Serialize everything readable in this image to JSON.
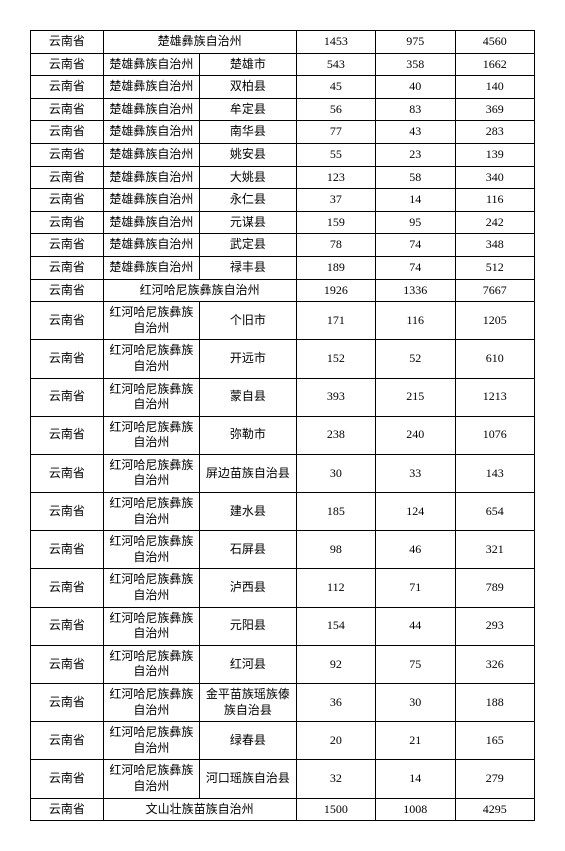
{
  "rows": [
    {
      "type": "summary",
      "prov": "云南省",
      "merged": "楚雄彝族自治州",
      "n1": "1453",
      "n2": "975",
      "n3": "4560"
    },
    {
      "type": "detail",
      "prov": "云南省",
      "pref": "楚雄彝族自治州",
      "county": "楚雄市",
      "n1": "543",
      "n2": "358",
      "n3": "1662"
    },
    {
      "type": "detail",
      "prov": "云南省",
      "pref": "楚雄彝族自治州",
      "county": "双柏县",
      "n1": "45",
      "n2": "40",
      "n3": "140"
    },
    {
      "type": "detail",
      "prov": "云南省",
      "pref": "楚雄彝族自治州",
      "county": "牟定县",
      "n1": "56",
      "n2": "83",
      "n3": "369"
    },
    {
      "type": "detail",
      "prov": "云南省",
      "pref": "楚雄彝族自治州",
      "county": "南华县",
      "n1": "77",
      "n2": "43",
      "n3": "283"
    },
    {
      "type": "detail",
      "prov": "云南省",
      "pref": "楚雄彝族自治州",
      "county": "姚安县",
      "n1": "55",
      "n2": "23",
      "n3": "139"
    },
    {
      "type": "detail",
      "prov": "云南省",
      "pref": "楚雄彝族自治州",
      "county": "大姚县",
      "n1": "123",
      "n2": "58",
      "n3": "340"
    },
    {
      "type": "detail",
      "prov": "云南省",
      "pref": "楚雄彝族自治州",
      "county": "永仁县",
      "n1": "37",
      "n2": "14",
      "n3": "116"
    },
    {
      "type": "detail",
      "prov": "云南省",
      "pref": "楚雄彝族自治州",
      "county": "元谋县",
      "n1": "159",
      "n2": "95",
      "n3": "242"
    },
    {
      "type": "detail",
      "prov": "云南省",
      "pref": "楚雄彝族自治州",
      "county": "武定县",
      "n1": "78",
      "n2": "74",
      "n3": "348"
    },
    {
      "type": "detail",
      "prov": "云南省",
      "pref": "楚雄彝族自治州",
      "county": "禄丰县",
      "n1": "189",
      "n2": "74",
      "n3": "512"
    },
    {
      "type": "summary",
      "prov": "云南省",
      "merged": "红河哈尼族彝族自治州",
      "n1": "1926",
      "n2": "1336",
      "n3": "7667"
    },
    {
      "type": "detail",
      "prov": "云南省",
      "pref": "红河哈尼族彝族自治州",
      "county": "个旧市",
      "n1": "171",
      "n2": "116",
      "n3": "1205"
    },
    {
      "type": "detail",
      "prov": "云南省",
      "pref": "红河哈尼族彝族自治州",
      "county": "开远市",
      "n1": "152",
      "n2": "52",
      "n3": "610"
    },
    {
      "type": "detail",
      "prov": "云南省",
      "pref": "红河哈尼族彝族自治州",
      "county": "蒙自县",
      "n1": "393",
      "n2": "215",
      "n3": "1213"
    },
    {
      "type": "detail",
      "prov": "云南省",
      "pref": "红河哈尼族彝族自治州",
      "county": "弥勒市",
      "n1": "238",
      "n2": "240",
      "n3": "1076"
    },
    {
      "type": "detail",
      "prov": "云南省",
      "pref": "红河哈尼族彝族自治州",
      "county": "屏边苗族自治县",
      "n1": "30",
      "n2": "33",
      "n3": "143"
    },
    {
      "type": "detail",
      "prov": "云南省",
      "pref": "红河哈尼族彝族自治州",
      "county": "建水县",
      "n1": "185",
      "n2": "124",
      "n3": "654"
    },
    {
      "type": "detail",
      "prov": "云南省",
      "pref": "红河哈尼族彝族自治州",
      "county": "石屏县",
      "n1": "98",
      "n2": "46",
      "n3": "321"
    },
    {
      "type": "detail",
      "prov": "云南省",
      "pref": "红河哈尼族彝族自治州",
      "county": "泸西县",
      "n1": "112",
      "n2": "71",
      "n3": "789"
    },
    {
      "type": "detail",
      "prov": "云南省",
      "pref": "红河哈尼族彝族自治州",
      "county": "元阳县",
      "n1": "154",
      "n2": "44",
      "n3": "293"
    },
    {
      "type": "detail",
      "prov": "云南省",
      "pref": "红河哈尼族彝族自治州",
      "county": "红河县",
      "n1": "92",
      "n2": "75",
      "n3": "326"
    },
    {
      "type": "detail",
      "prov": "云南省",
      "pref": "红河哈尼族彝族自治州",
      "county": "金平苗族瑶族傣族自治县",
      "n1": "36",
      "n2": "30",
      "n3": "188"
    },
    {
      "type": "detail",
      "prov": "云南省",
      "pref": "红河哈尼族彝族自治州",
      "county": "绿春县",
      "n1": "20",
      "n2": "21",
      "n3": "165"
    },
    {
      "type": "detail",
      "prov": "云南省",
      "pref": "红河哈尼族彝族自治州",
      "county": "河口瑶族自治县",
      "n1": "32",
      "n2": "14",
      "n3": "279"
    },
    {
      "type": "summary",
      "prov": "云南省",
      "merged": "文山壮族苗族自治州",
      "n1": "1500",
      "n2": "1008",
      "n3": "4295"
    }
  ]
}
